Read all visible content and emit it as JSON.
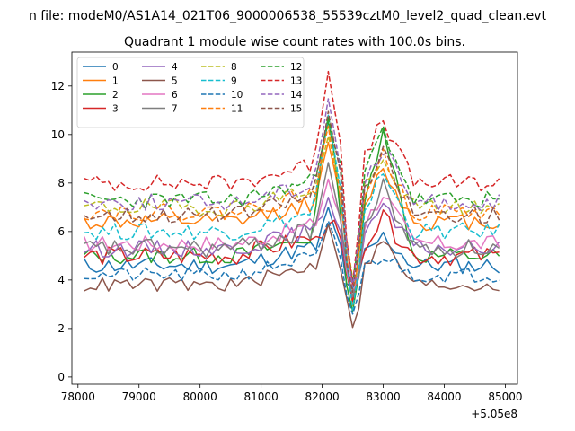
{
  "chart_data": {
    "type": "line",
    "suptitle": "n file: modeM0/AS1A14_021T06_9000006538_55539cztM0_level2_quad_clean.evt",
    "title": "Quadrant 1 module wise count rates with 100.0s bins.",
    "xlabel": "",
    "ylabel": "",
    "x_offset_label": "+5.05e8",
    "xlim": [
      77900,
      85200
    ],
    "ylim": [
      -0.3,
      13.4
    ],
    "xticks": [
      78000,
      79000,
      80000,
      81000,
      82000,
      83000,
      84000,
      85000
    ],
    "xtick_labels": [
      "78000",
      "79000",
      "80000",
      "81000",
      "82000",
      "83000",
      "84000",
      "85000"
    ],
    "yticks": [
      0,
      2,
      4,
      6,
      8,
      10,
      12
    ],
    "ytick_labels": [
      "0",
      "2",
      "4",
      "6",
      "8",
      "10",
      "12"
    ],
    "legend_position": "upper-left",
    "legend_columns": 4,
    "series": [
      {
        "name": "0",
        "color": "#1f77b4",
        "dash": false,
        "base": 4.6,
        "amp": 0.35,
        "seed": 11,
        "peak": 6.8,
        "dip": 3.5,
        "post": 5.8
      },
      {
        "name": "1",
        "color": "#ff7f0e",
        "dash": false,
        "base": 6.4,
        "amp": 0.35,
        "seed": 12,
        "peak": 9.4,
        "dip": 3.5,
        "post": 8.6
      },
      {
        "name": "2",
        "color": "#2ca02c",
        "dash": false,
        "base": 5.0,
        "amp": 0.35,
        "seed": 13,
        "peak": 10.9,
        "dip": 3.0,
        "post": 10.4
      },
      {
        "name": "3",
        "color": "#d62728",
        "dash": false,
        "base": 5.0,
        "amp": 0.4,
        "seed": 14,
        "peak": 6.6,
        "dip": 3.2,
        "post": 6.5
      },
      {
        "name": "4",
        "color": "#9467bd",
        "dash": false,
        "base": 5.3,
        "amp": 0.35,
        "seed": 15,
        "peak": 7.6,
        "dip": 3.8,
        "post": 7.0
      },
      {
        "name": "5",
        "color": "#8c564b",
        "dash": false,
        "base": 3.8,
        "amp": 0.3,
        "seed": 16,
        "peak": 6.4,
        "dip": 2.4,
        "post": 5.6
      },
      {
        "name": "6",
        "color": "#e377c2",
        "dash": false,
        "base": 5.5,
        "amp": 0.35,
        "seed": 17,
        "peak": 8.2,
        "dip": 3.6,
        "post": 7.6
      },
      {
        "name": "7",
        "color": "#7f7f7f",
        "dash": false,
        "base": 5.3,
        "amp": 0.4,
        "seed": 18,
        "peak": 8.8,
        "dip": 3.4,
        "post": 7.8
      },
      {
        "name": "8",
        "color": "#bcbd22",
        "dash": true,
        "base": 7.0,
        "amp": 0.35,
        "seed": 19,
        "peak": 9.8,
        "dip": 4.0,
        "post": 8.8
      },
      {
        "name": "9",
        "color": "#17becf",
        "dash": true,
        "base": 6.0,
        "amp": 0.35,
        "seed": 20,
        "peak": 10.6,
        "dip": 3.3,
        "post": 8.4
      },
      {
        "name": "10",
        "color": "#1f77b4",
        "dash": true,
        "base": 4.2,
        "amp": 0.3,
        "seed": 21,
        "peak": 6.2,
        "dip": 2.8,
        "post": 5.0
      },
      {
        "name": "11",
        "color": "#ff7f0e",
        "dash": true,
        "base": 6.8,
        "amp": 0.35,
        "seed": 22,
        "peak": 10.0,
        "dip": 4.2,
        "post": 9.1
      },
      {
        "name": "12",
        "color": "#2ca02c",
        "dash": true,
        "base": 7.3,
        "amp": 0.35,
        "seed": 23,
        "peak": 11.0,
        "dip": 4.0,
        "post": 10.2
      },
      {
        "name": "13",
        "color": "#d62728",
        "dash": true,
        "base": 8.0,
        "amp": 0.35,
        "seed": 24,
        "peak": 12.8,
        "dip": 4.4,
        "post": 10.6
      },
      {
        "name": "14",
        "color": "#9467bd",
        "dash": true,
        "base": 7.2,
        "amp": 0.35,
        "seed": 25,
        "peak": 11.6,
        "dip": 4.1,
        "post": 9.4
      },
      {
        "name": "15",
        "color": "#8c564b",
        "dash": true,
        "base": 6.7,
        "amp": 0.35,
        "seed": 26,
        "peak": 11.0,
        "dip": 3.7,
        "post": 9.2
      }
    ],
    "x_start": 78100,
    "x_end": 84950,
    "x_step": 100
  }
}
